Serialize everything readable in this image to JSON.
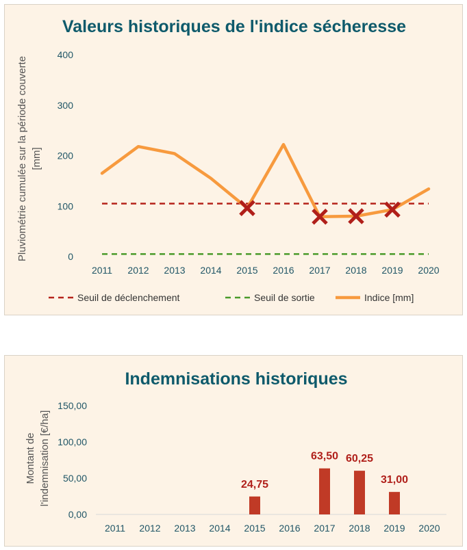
{
  "colors": {
    "title": "#0e5a6b",
    "index_line": "#f79a3e",
    "trigger_line": "#b5231b",
    "exit_line": "#4a9a2a",
    "marker": "#b01f1a",
    "bar": "#c03a26",
    "bar_label": "#b01f1a",
    "panel_bg": "#fdf3e6"
  },
  "chart_data": [
    {
      "type": "line",
      "title": "Valeurs historiques de l'indice sécheresse",
      "ylabel_lines": [
        "Pluviométrie cumulée sur la période couverte",
        "[mm]"
      ],
      "xlabel": "",
      "categories": [
        "2011",
        "2012",
        "2013",
        "2014",
        "2015",
        "2016",
        "2017",
        "2018",
        "2019",
        "2020"
      ],
      "ylim": [
        0,
        400
      ],
      "yticks": [
        0,
        100,
        200,
        300,
        400
      ],
      "series": [
        {
          "name": "Seuil de déclenchement",
          "style": "dashed",
          "values": [
            105,
            105,
            105,
            105,
            105,
            105,
            105,
            105,
            105,
            105
          ]
        },
        {
          "name": "Seuil de sortie",
          "style": "dashed",
          "values": [
            5,
            5,
            5,
            5,
            5,
            5,
            5,
            5,
            5,
            5
          ]
        },
        {
          "name": "Indice [mm]",
          "style": "solid",
          "values": [
            165,
            218,
            204,
            155,
            96,
            222,
            79,
            80,
            93,
            134
          ]
        }
      ],
      "markers": {
        "symbol": "x",
        "x": [
          "2015",
          "2017",
          "2018",
          "2019"
        ],
        "y": [
          96,
          79,
          80,
          93
        ]
      },
      "legend": [
        "Seuil de déclenchement",
        "Seuil de sortie",
        "Indice [mm]"
      ],
      "legend_position": "bottom"
    },
    {
      "type": "bar",
      "title": "Indemnisations historiques",
      "ylabel_lines": [
        "Montant de",
        "l'indemnisation [€/ha]"
      ],
      "xlabel": "",
      "categories": [
        "2011",
        "2012",
        "2013",
        "2014",
        "2015",
        "2016",
        "2017",
        "2018",
        "2019",
        "2020"
      ],
      "values": [
        0,
        0,
        0,
        0,
        24.75,
        0,
        63.5,
        60.25,
        31.0,
        0
      ],
      "data_labels": [
        "",
        "",
        "",
        "",
        "24,75",
        "",
        "63,50",
        "60,25",
        "31,00",
        ""
      ],
      "ylim": [
        0,
        150
      ],
      "ytick_values": [
        0,
        50,
        100,
        150
      ],
      "ytick_labels": [
        "0,00",
        "50,00",
        "100,00",
        "150,00"
      ]
    }
  ]
}
